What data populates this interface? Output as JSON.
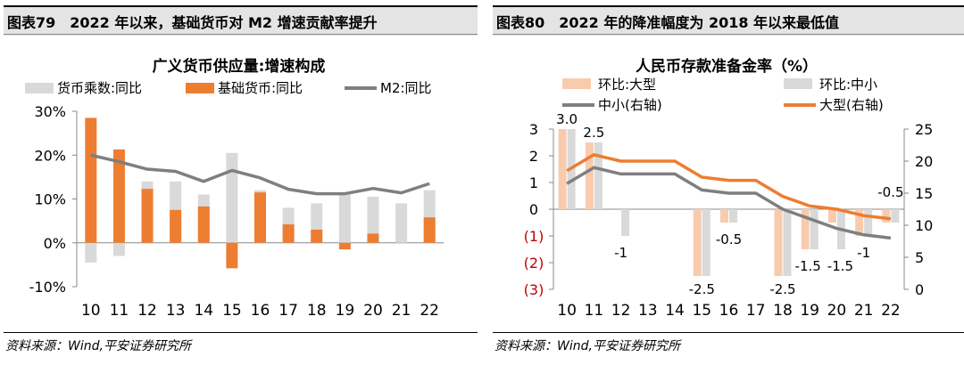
{
  "left": {
    "figure_no": "图表79",
    "figure_title": "2022 年以来，基础货币对 M2 增速贡献率提升",
    "source": "资料来源：Wind,平安证券研究所",
    "colors": {
      "multiplier": "#d9d9d9",
      "base": "#ed7d31",
      "m2": "#7f7f7f"
    }
  },
  "right": {
    "figure_no": "图表80",
    "figure_title": "2022 年的降准幅度为 2018 年以来最低值",
    "source": "资料来源：Wind,平安证券研究所",
    "colors": {
      "large_bar": "#f8cbad",
      "small_bar": "#d9d9d9",
      "small_line": "#7f7f7f",
      "large_line": "#ed7d31",
      "neg_tick": "#c00000"
    }
  },
  "chart_data": [
    {
      "type": "bar",
      "title": "广义货币供应量:增速构成",
      "categories": [
        "10",
        "11",
        "12",
        "13",
        "14",
        "15",
        "16",
        "17",
        "18",
        "19",
        "20",
        "21",
        "22"
      ],
      "y_ticks": [
        "-10%",
        "0%",
        "10%",
        "20%",
        "30%"
      ],
      "ylim": [
        -10,
        30
      ],
      "series": [
        {
          "name": "货币乘数:同比",
          "kind": "bar",
          "values": [
            -4.5,
            -3.0,
            14.0,
            14.0,
            11.0,
            20.5,
            12.0,
            8.0,
            9.0,
            11.0,
            10.5,
            9.0,
            12.0
          ]
        },
        {
          "name": "基础货币:同比",
          "kind": "bar",
          "values": [
            28.5,
            21.3,
            12.3,
            7.5,
            8.3,
            -5.8,
            11.5,
            4.2,
            3.0,
            -1.5,
            2.1,
            0.0,
            5.8
          ]
        },
        {
          "name": "M2:同比",
          "kind": "line",
          "values": [
            20.0,
            18.5,
            16.8,
            16.3,
            14.0,
            16.5,
            14.8,
            12.2,
            11.2,
            11.2,
            12.4,
            11.4,
            13.5
          ]
        }
      ]
    },
    {
      "type": "bar",
      "title": "人民币存款准备金率（%）",
      "categories": [
        "10",
        "11",
        "12",
        "13",
        "14",
        "15",
        "16",
        "17",
        "18",
        "19",
        "20",
        "21",
        "22"
      ],
      "y_left_ticks": [
        "(3)",
        "(2)",
        "(1)",
        "0",
        "1",
        "2",
        "3"
      ],
      "ylim_left": [
        -3,
        3
      ],
      "y_right_ticks": [
        "0",
        "5",
        "10",
        "15",
        "20",
        "25"
      ],
      "ylim_right": [
        0,
        25
      ],
      "series": [
        {
          "name": "环比:大型",
          "kind": "bar",
          "axis": "left",
          "values": [
            3.0,
            2.5,
            0,
            0,
            0,
            -2.5,
            -0.5,
            0,
            -2.5,
            -1.5,
            -0.5,
            -1.0,
            -0.5
          ]
        },
        {
          "name": "环比:中小",
          "kind": "bar",
          "axis": "left",
          "values": [
            3.0,
            2.5,
            -1.0,
            0,
            0,
            -2.5,
            -0.5,
            0,
            -2.5,
            -1.5,
            -1.5,
            -1.0,
            -0.5
          ]
        },
        {
          "name": "中小(右轴)",
          "kind": "line",
          "axis": "right",
          "values": [
            16.5,
            19.0,
            18.0,
            18.0,
            18.0,
            15.5,
            15.0,
            15.0,
            12.5,
            11.0,
            9.5,
            8.5,
            8.0
          ]
        },
        {
          "name": "大型(右轴)",
          "kind": "line",
          "axis": "right",
          "values": [
            18.5,
            21.0,
            20.0,
            20.0,
            20.0,
            17.5,
            17.0,
            17.0,
            14.5,
            13.0,
            12.5,
            11.5,
            11.0
          ]
        }
      ],
      "data_labels": [
        {
          "i": 0,
          "text": "3.0",
          "v": 3.0
        },
        {
          "i": 1,
          "text": "2.5",
          "v": 2.5
        },
        {
          "i": 2,
          "text": "-1",
          "v": -1.0
        },
        {
          "i": 5,
          "text": "-2.5",
          "v": -2.5
        },
        {
          "i": 6,
          "text": "-0.5",
          "v": -0.5
        },
        {
          "i": 8,
          "text": "-2.5",
          "v": -2.5
        },
        {
          "i": 9,
          "text": "-1.5",
          "v": -1.5
        },
        {
          "i": 10,
          "text": "-1.5",
          "v": -1.5
        },
        {
          "i": 11,
          "text": "-1",
          "v": -1.0
        },
        {
          "i": 12,
          "text": "-0.5",
          "v": -0.5
        }
      ]
    }
  ]
}
